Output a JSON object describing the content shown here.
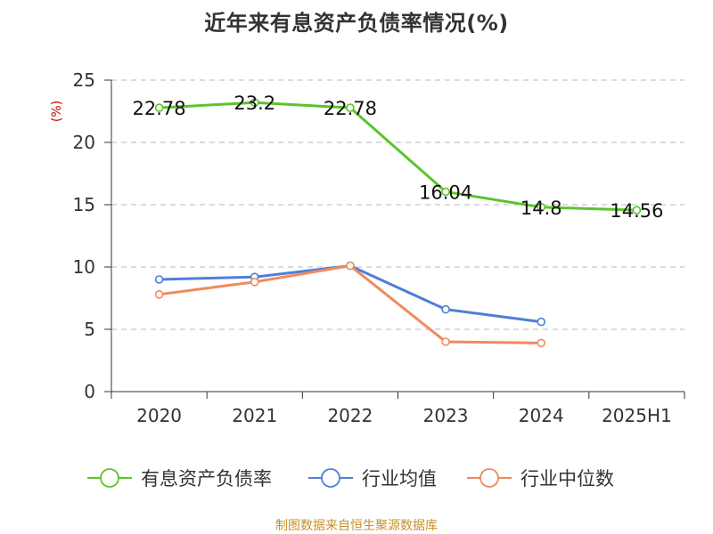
{
  "chart_data": {
    "type": "line",
    "title": "近年来有息资产负债率情况(%)",
    "y_unit": "(%)",
    "categories": [
      "2020",
      "2021",
      "2022",
      "2023",
      "2024",
      "2025H1"
    ],
    "ylim": [
      0,
      25
    ],
    "yticks": [
      0,
      5,
      10,
      15,
      20,
      25
    ],
    "grid": true,
    "legend_position": "bottom",
    "series": [
      {
        "name": "有息资产负债率",
        "color": "#5ac52a",
        "values": [
          22.78,
          23.2,
          22.78,
          16.04,
          14.8,
          14.56
        ],
        "data_labels": [
          "22.78",
          "23.2",
          "22.78",
          "16.04",
          "14.8",
          "14.56"
        ]
      },
      {
        "name": "行业均值",
        "color": "#4e7fd8",
        "values": [
          9.0,
          9.2,
          10.1,
          6.6,
          5.6,
          null
        ]
      },
      {
        "name": "行业中位数",
        "color": "#f08a5d",
        "values": [
          7.8,
          8.8,
          10.1,
          4.0,
          3.9,
          null
        ]
      }
    ]
  },
  "source_note": "制图数据来自恒生聚源数据库"
}
